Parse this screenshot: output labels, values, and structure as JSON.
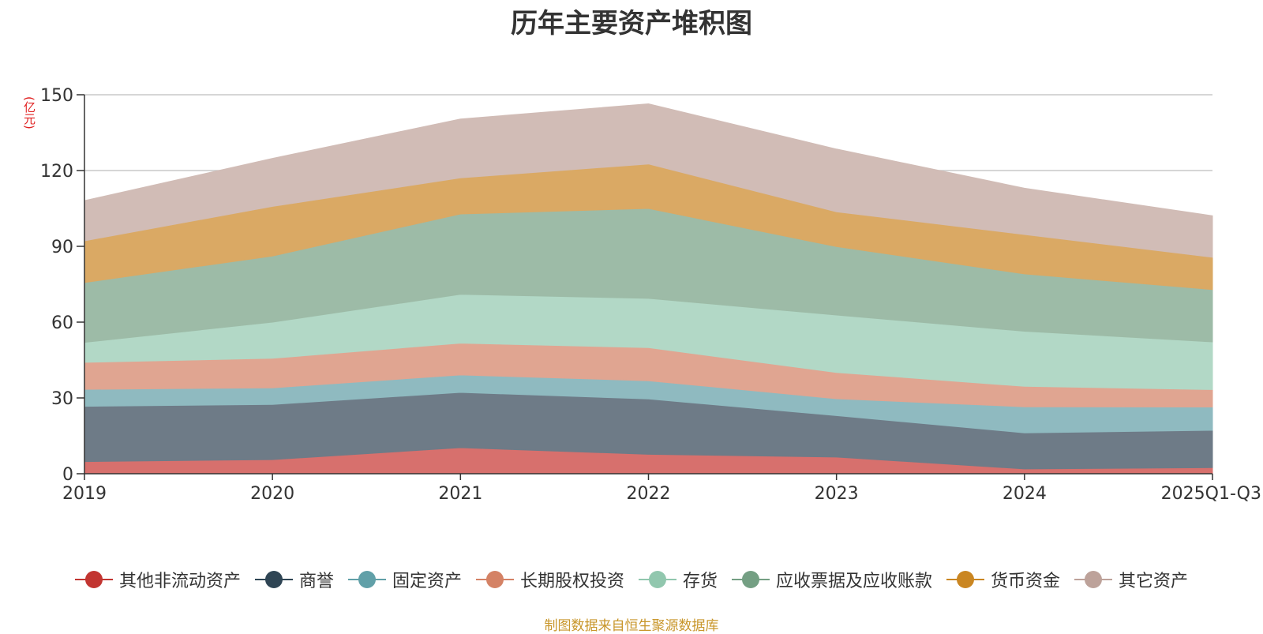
{
  "chart_data": {
    "type": "area",
    "stacked": true,
    "title": "历年主要资产堆积图",
    "unit": "(亿元)",
    "xlabel": "",
    "ylabel": "(亿元)",
    "ylim": [
      0,
      150
    ],
    "yticks": [
      0,
      30,
      60,
      90,
      120,
      150
    ],
    "grid": true,
    "legend_position": "bottom",
    "categories": [
      "2019",
      "2020",
      "2021",
      "2022",
      "2023",
      "2024",
      "2025Q1-Q3"
    ],
    "series": [
      {
        "name": "其他非流动资产",
        "color": "#d7706d",
        "legend_color": "#c23531",
        "values": [
          4.8,
          5.6,
          10.3,
          7.7,
          6.6,
          1.9,
          2.4
        ]
      },
      {
        "name": "商誉",
        "color": "#6e7b87",
        "legend_color": "#2f4554",
        "values": [
          21.9,
          21.8,
          21.9,
          21.9,
          16.4,
          14.3,
          14.8
        ]
      },
      {
        "name": "固定资产",
        "color": "#8fbac0",
        "legend_color": "#61a0a8",
        "values": [
          6.7,
          6.6,
          6.9,
          7.2,
          6.7,
          10.3,
          9.2
        ]
      },
      {
        "name": "长期股权投资",
        "color": "#e0a591",
        "legend_color": "#d48265",
        "values": [
          10.7,
          11.7,
          12.6,
          13.1,
          10.4,
          8.1,
          6.9
        ]
      },
      {
        "name": "存货",
        "color": "#b2d8c6",
        "legend_color": "#91c7ae",
        "values": [
          7.9,
          14.3,
          19.3,
          19.5,
          22.7,
          21.8,
          18.9
        ]
      },
      {
        "name": "应收票据及应收账款",
        "color": "#9dbba7",
        "legend_color": "#749f83",
        "values": [
          23.7,
          26.2,
          31.8,
          35.6,
          27.1,
          22.7,
          20.7
        ]
      },
      {
        "name": "货币资金",
        "color": "#daa964",
        "legend_color": "#ca8622",
        "values": [
          16.5,
          19.6,
          14.3,
          17.6,
          13.8,
          15.6,
          12.8
        ]
      },
      {
        "name": "其它资产",
        "color": "#d1bcb6",
        "legend_color": "#bda29a",
        "values": [
          15.9,
          19.0,
          23.3,
          23.8,
          24.8,
          18.3,
          16.4
        ]
      }
    ]
  },
  "source_note": "制图数据来自恒生聚源数据库"
}
